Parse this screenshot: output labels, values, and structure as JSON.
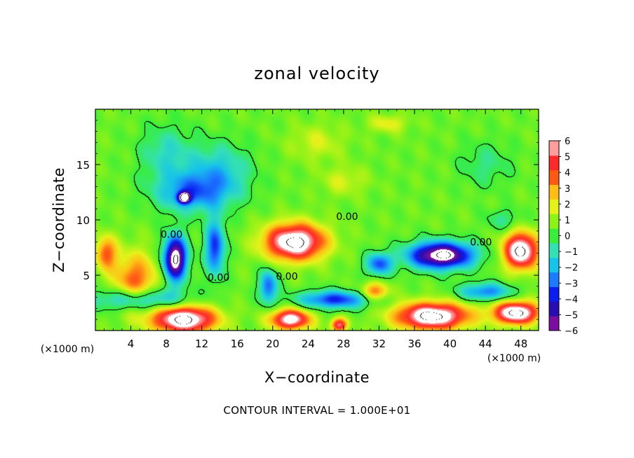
{
  "chart_data": {
    "type": "heatmap",
    "title": "zonal velocity",
    "xlabel": "X−coordinate",
    "ylabel": "Z−coordinate",
    "x_unit": "(×1000 m)",
    "y_unit": "(×1000 m)",
    "xlim": [
      0,
      50
    ],
    "ylim": [
      0,
      20
    ],
    "x_ticks": [
      4,
      8,
      12,
      16,
      20,
      24,
      28,
      32,
      36,
      40,
      44,
      48
    ],
    "y_ticks": [
      5,
      10,
      15
    ],
    "colorbar": {
      "ticks": [
        6,
        5,
        4,
        3,
        2,
        1,
        0,
        -1,
        -2,
        -3,
        -4,
        -5,
        -6
      ],
      "range": [
        -6,
        6
      ],
      "colors": [
        "#7a0fa0",
        "#2a0db0",
        "#0a1ef0",
        "#1c7cff",
        "#16c3ea",
        "#34e0b4",
        "#38ee3a",
        "#8cf218",
        "#e5f21a",
        "#ffbe16",
        "#ff5a14",
        "#ff2a2a",
        "#ff9e9e"
      ]
    },
    "contour_labels": [
      {
        "text": "0.00",
        "x": 8.6,
        "y": 8.4
      },
      {
        "text": "0.00",
        "x": 28.4,
        "y": 10.0
      },
      {
        "text": "0.00",
        "x": 13.9,
        "y": 4.5
      },
      {
        "text": "0.00",
        "x": 21.6,
        "y": 4.6
      },
      {
        "text": "0.00",
        "x": 43.5,
        "y": 7.7
      }
    ],
    "field": {
      "background": 0.6,
      "blobs": [
        {
          "x": 11,
          "y": 12.5,
          "sx": 4.2,
          "sy": 1.8,
          "a": -3.4
        },
        {
          "x": 14,
          "y": 14.5,
          "sx": 3.5,
          "sy": 2.5,
          "a": -2.2
        },
        {
          "x": 8,
          "y": 16,
          "sx": 3,
          "sy": 2.5,
          "a": -1.8
        },
        {
          "x": 10,
          "y": 12,
          "sx": 0.7,
          "sy": 0.5,
          "a": -7
        },
        {
          "x": 22.5,
          "y": 8,
          "sx": 3.3,
          "sy": 1.6,
          "a": 7.5
        },
        {
          "x": 39,
          "y": 6.8,
          "sx": 3.6,
          "sy": 1.2,
          "a": -8
        },
        {
          "x": 48,
          "y": 7.2,
          "sx": 1.9,
          "sy": 1.6,
          "a": 7.5
        },
        {
          "x": 9,
          "y": 6.5,
          "sx": 1.3,
          "sy": 2,
          "a": -8
        },
        {
          "x": 13.5,
          "y": 7.5,
          "sx": 1.1,
          "sy": 2.5,
          "a": -4.5
        },
        {
          "x": 19.5,
          "y": 4,
          "sx": 1,
          "sy": 1.5,
          "a": -4
        },
        {
          "x": 4.5,
          "y": 4.5,
          "sx": 2.5,
          "sy": 2.5,
          "a": 3.5
        },
        {
          "x": 1.2,
          "y": 7,
          "sx": 1.2,
          "sy": 1.5,
          "a": 3.5
        },
        {
          "x": 10,
          "y": 1,
          "sx": 3.5,
          "sy": 1.2,
          "a": 7.5
        },
        {
          "x": 22,
          "y": 1,
          "sx": 2.2,
          "sy": 0.9,
          "a": 6.5
        },
        {
          "x": 38,
          "y": 1.3,
          "sx": 4,
          "sy": 1.2,
          "a": 7.5
        },
        {
          "x": 47.5,
          "y": 1.6,
          "sx": 2.5,
          "sy": 1,
          "a": 7.5
        },
        {
          "x": 31.5,
          "y": 3.5,
          "sx": 1.5,
          "sy": 0.8,
          "a": 3.5
        },
        {
          "x": 27.5,
          "y": 0.5,
          "sx": 0.9,
          "sy": 0.6,
          "a": 5
        },
        {
          "x": 32,
          "y": 6,
          "sx": 1.5,
          "sy": 1,
          "a": -4
        },
        {
          "x": 5,
          "y": 2.8,
          "sx": 5,
          "sy": 1,
          "a": -3.5
        },
        {
          "x": 27,
          "y": 2.8,
          "sx": 4,
          "sy": 0.8,
          "a": -4.5
        },
        {
          "x": 44,
          "y": 3.5,
          "sx": 3,
          "sy": 0.8,
          "a": -3.5
        },
        {
          "x": 33,
          "y": 18.7,
          "sx": 2.2,
          "sy": 0.8,
          "a": 1.5
        },
        {
          "x": 28,
          "y": 13.5,
          "sx": 2.5,
          "sy": 1.3,
          "a": 1.2
        },
        {
          "x": 44,
          "y": 15,
          "sx": 3,
          "sy": 2,
          "a": -1.2
        },
        {
          "x": 25,
          "y": 17,
          "sx": 3,
          "sy": 1.6,
          "a": 1.2
        },
        {
          "x": 46,
          "y": 10,
          "sx": 2,
          "sy": 1,
          "a": -1.3
        }
      ]
    }
  },
  "footer": {
    "contour_interval": "CONTOUR INTERVAL = 1.000E+01"
  }
}
